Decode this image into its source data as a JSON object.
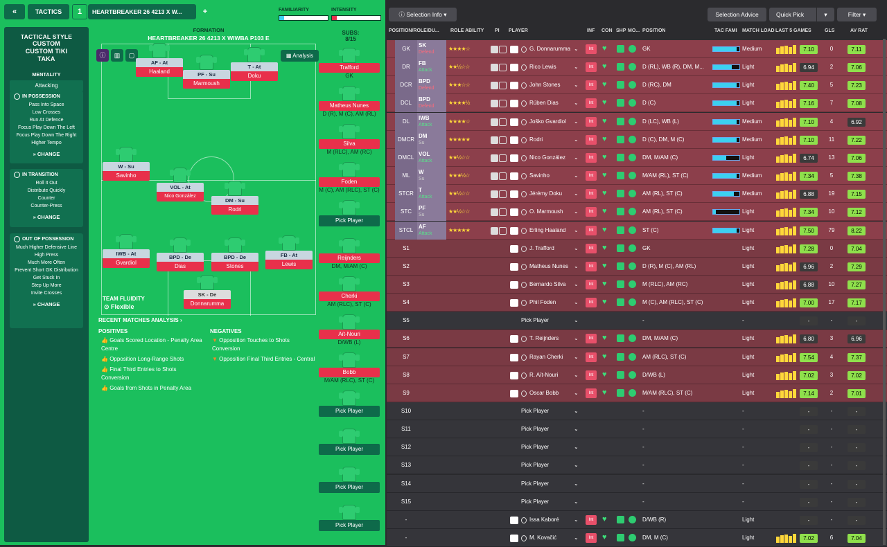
{
  "topbar": {
    "tactics_label": "TACTICS",
    "slot": "1",
    "tactic_name": "HEARTBREAKER 26 4213 X W...",
    "add": "+",
    "familiarity": "FAMILIARITY",
    "intensity": "INTENSITY"
  },
  "sidebar": {
    "style_label": "TACTICAL STYLE",
    "style_name": "CUSTOM CUSTOM TIKI TAKA",
    "mentality_label": "MENTALITY",
    "mentality": "Attacking",
    "in_possession": {
      "title": "IN POSSESSION",
      "items": [
        "Pass Into Space",
        "Low Crosses",
        "Run At Defence",
        "Focus Play Down The Left",
        "Focus Play Down The Right",
        "Higher Tempo"
      ],
      "change": "CHANGE"
    },
    "in_transition": {
      "title": "IN TRANSITION",
      "items": [
        "Roll It Out",
        "Distribute Quickly",
        "Counter",
        "Counter-Press"
      ],
      "change": "CHANGE"
    },
    "out_of_possession": {
      "title": "OUT OF POSSESSION",
      "items": [
        "Much Higher Defensive Line",
        "High Press",
        "Much More Often",
        "Prevent Short GK Distribution",
        "Get Stuck In",
        "Step Up More",
        "Invite Crosses"
      ],
      "change": "CHANGE"
    }
  },
  "formation": {
    "label": "FORMATION",
    "name": "HEARTBREAKER 26 4213 X WIWBA P103 E",
    "analysis": "Analysis",
    "team_fluidity": "TEAM FLUIDITY",
    "fluidity": "Flexible"
  },
  "pitch_players": [
    {
      "role": "AF - At",
      "name": "Haaland"
    },
    {
      "role": "PF - Su",
      "name": "Marmoush"
    },
    {
      "role": "T - At",
      "name": "Doku"
    },
    {
      "role": "W - Su",
      "name": "Savinho"
    },
    {
      "role": "VOL - At",
      "name": "Nico González"
    },
    {
      "role": "DM - Su",
      "name": "Rodri"
    },
    {
      "role": "IWB - At",
      "name": "Gvardiol"
    },
    {
      "role": "BPD - De",
      "name": "Dias"
    },
    {
      "role": "BPD - De",
      "name": "Stones"
    },
    {
      "role": "FB - At",
      "name": "Lewis"
    },
    {
      "role": "SK - De",
      "name": "Donnarumma"
    }
  ],
  "subs": {
    "label": "SUBS:",
    "count": "8/15",
    "list": [
      {
        "name": "Trafford",
        "pos": "GK"
      },
      {
        "name": "Matheus Nunes",
        "pos": "D (R), M (C), AM (RL)"
      },
      {
        "name": "Silva",
        "pos": "M (RLC), AM (RC)"
      },
      {
        "name": "Foden",
        "pos": "M (C), AM (RLC), ST (C)"
      },
      {
        "name": "Pick Player",
        "pos": ""
      },
      {
        "name": "Reijnders",
        "pos": "DM, M/AM (C)"
      },
      {
        "name": "Cherki",
        "pos": "AM (RLC), ST (C)"
      },
      {
        "name": "Aït-Nouri",
        "pos": "D/WB (L)"
      },
      {
        "name": "Bobb",
        "pos": "M/AM (RLC), ST (C)"
      },
      {
        "name": "Pick Player",
        "pos": ""
      },
      {
        "name": "Pick Player",
        "pos": ""
      },
      {
        "name": "Pick Player",
        "pos": ""
      },
      {
        "name": "Pick Player",
        "pos": ""
      }
    ]
  },
  "analysis": {
    "title": "RECENT MATCHES ANALYSIS",
    "positives_label": "POSITIVES",
    "negatives_label": "NEGATIVES",
    "positives": [
      "Goals Scored Location - Penalty Area Centre",
      "Opposition Long-Range Shots",
      "Final Third Entries to Shots Conversion",
      "Goals from Shots in Penalty Area"
    ],
    "negatives": [
      "Opposition Touches to Shots Conversion",
      "Opposition Final Third Entries - Central"
    ]
  },
  "right_header": {
    "selection_info": "Selection Info",
    "selection_advice": "Selection Advice",
    "quick_pick": "Quick Pick",
    "filter": "Filter"
  },
  "columns": [
    "POSITION/ROLE/DU...",
    "ROLE ABILITY",
    "PI",
    "PLAYER",
    "INF",
    "CON",
    "SHP",
    "MO...",
    "POSITION",
    "TAC FAMI",
    "MATCH LOAD",
    "LAST 5 GAMES",
    "GLS",
    "AV RAT"
  ],
  "rows": [
    {
      "pos": "GK",
      "role": "SK",
      "duty": "Defend",
      "stars": "★★★★☆",
      "player": "G. Donnarumma",
      "position": "GK",
      "tac": 0.9,
      "load": "Medium",
      "last": "7.10",
      "gls": "0",
      "rat": "7.11",
      "type": "st"
    },
    {
      "pos": "DR",
      "role": "FB",
      "duty": "Attack",
      "stars": "★★½☆☆",
      "player": "Rico Lewis",
      "position": "D (RL), WB (R), DM, M...",
      "tac": 0.7,
      "load": "Light",
      "last": "6.94",
      "gls": "2",
      "rat": "7.06",
      "type": "st"
    },
    {
      "pos": "DCR",
      "role": "BPD",
      "duty": "Defend",
      "stars": "★★★☆☆",
      "player": "John Stones",
      "position": "D (RC), DM",
      "tac": 0.9,
      "load": "Light",
      "last": "7.40",
      "gls": "5",
      "rat": "7.23",
      "type": "st"
    },
    {
      "pos": "DCL",
      "role": "BPD",
      "duty": "Defend",
      "stars": "★★★★½",
      "player": "Rúben Dias",
      "position": "D (C)",
      "tac": 0.9,
      "load": "Light",
      "last": "7.16",
      "gls": "7",
      "rat": "7.08",
      "type": "st"
    },
    {
      "pos": "DL",
      "role": "IWB",
      "duty": "Attack",
      "stars": "★★★★☆",
      "player": "Joško Gvardiol",
      "position": "D (LC), WB (L)",
      "tac": 0.9,
      "load": "Medium",
      "last": "7.10",
      "gls": "4",
      "rat": "6.92",
      "type": "st"
    },
    {
      "pos": "DMCR",
      "role": "DM",
      "duty": "Su",
      "stars": "★★★★★",
      "player": "Rodri",
      "position": "D (C), DM, M (C)",
      "tac": 0.9,
      "load": "Medium",
      "last": "7.10",
      "gls": "11",
      "rat": "7.22",
      "type": "st"
    },
    {
      "pos": "DMCL",
      "role": "VOL",
      "duty": "Attack",
      "stars": "★★½☆☆",
      "player": "Nico González",
      "position": "DM, M/AM (C)",
      "tac": 0.5,
      "load": "Light",
      "last": "6.74",
      "gls": "13",
      "rat": "7.06",
      "type": "st"
    },
    {
      "pos": "ML",
      "role": "W",
      "duty": "Su",
      "stars": "★★★½☆",
      "player": "Savinho",
      "position": "M/AM (RL), ST (C)",
      "tac": 0.9,
      "load": "Medium",
      "last": "7.34",
      "gls": "5",
      "rat": "7.38",
      "type": "st"
    },
    {
      "pos": "STCR",
      "role": "T",
      "duty": "Attack",
      "stars": "★★½☆☆",
      "player": "Jérémy Doku",
      "position": "AM (RL), ST (C)",
      "tac": 0.8,
      "load": "Medium",
      "last": "6.88",
      "gls": "19",
      "rat": "7.15",
      "type": "st"
    },
    {
      "pos": "STC",
      "role": "PF",
      "duty": "Su",
      "stars": "★★½☆☆",
      "player": "O. Marmoush",
      "position": "AM (RL), ST (C)",
      "tac": 0.1,
      "load": "Light",
      "last": "7.34",
      "gls": "10",
      "rat": "7.12",
      "type": "st"
    },
    {
      "pos": "STCL",
      "role": "AF",
      "duty": "Attack",
      "stars": "★★★★★",
      "player": "Erling Haaland",
      "position": "ST (C)",
      "tac": 0.9,
      "load": "Light",
      "last": "7.50",
      "gls": "79",
      "rat": "8.22",
      "type": "st"
    },
    {
      "pos": "S1",
      "player": "J. Trafford",
      "position": "GK",
      "load": "Light",
      "last": "7.28",
      "gls": "0",
      "rat": "7.04",
      "type": "sub-r"
    },
    {
      "pos": "S2",
      "player": "Matheus Nunes",
      "position": "D (R), M (C), AM (RL)",
      "load": "Light",
      "last": "6.96",
      "gls": "2",
      "rat": "7.29",
      "type": "sub-r"
    },
    {
      "pos": "S3",
      "player": "Bernardo Silva",
      "position": "M (RLC), AM (RC)",
      "load": "Light",
      "last": "6.88",
      "gls": "10",
      "rat": "7.27",
      "type": "sub-r"
    },
    {
      "pos": "S4",
      "player": "Phil Foden",
      "position": "M (C), AM (RLC), ST (C)",
      "load": "Light",
      "last": "7.00",
      "gls": "17",
      "rat": "7.17",
      "type": "sub-r"
    },
    {
      "pos": "S5",
      "player": "Pick Player",
      "position": "-",
      "load": "-",
      "last": "-",
      "gls": "-",
      "rat": "-",
      "type": "em"
    },
    {
      "pos": "S6",
      "player": "T. Reijnders",
      "position": "DM, M/AM (C)",
      "load": "Light",
      "last": "6.80",
      "gls": "3",
      "rat": "6.96",
      "type": "sub-r"
    },
    {
      "pos": "S7",
      "player": "Rayan Cherki",
      "position": "AM (RLC), ST (C)",
      "load": "Light",
      "last": "7.54",
      "gls": "4",
      "rat": "7.37",
      "type": "sub-r"
    },
    {
      "pos": "S8",
      "player": "R. Aït-Nouri",
      "position": "D/WB (L)",
      "load": "Light",
      "last": "7.02",
      "gls": "3",
      "rat": "7.02",
      "type": "sub-r"
    },
    {
      "pos": "S9",
      "player": "Oscar Bobb",
      "position": "M/AM (RLC), ST (C)",
      "load": "Light",
      "last": "7.14",
      "gls": "2",
      "rat": "7.01",
      "type": "sub-r"
    },
    {
      "pos": "S10",
      "player": "Pick Player",
      "position": "-",
      "load": "-",
      "last": "-",
      "gls": "-",
      "rat": "-",
      "type": "em"
    },
    {
      "pos": "S11",
      "player": "Pick Player",
      "position": "-",
      "load": "-",
      "last": "-",
      "gls": "-",
      "rat": "-",
      "type": "em"
    },
    {
      "pos": "S12",
      "player": "Pick Player",
      "position": "-",
      "load": "-",
      "last": "-",
      "gls": "-",
      "rat": "-",
      "type": "em"
    },
    {
      "pos": "S13",
      "player": "Pick Player",
      "position": "-",
      "load": "-",
      "last": "-",
      "gls": "-",
      "rat": "-",
      "type": "em"
    },
    {
      "pos": "S14",
      "player": "Pick Player",
      "position": "-",
      "load": "-",
      "last": "-",
      "gls": "-",
      "rat": "-",
      "type": "em"
    },
    {
      "pos": "S15",
      "player": "Pick Player",
      "position": "-",
      "load": "-",
      "last": "-",
      "gls": "-",
      "rat": "-",
      "type": "em"
    },
    {
      "pos": "-",
      "player": "Issa Kaboré",
      "position": "D/WB (R)",
      "load": "Light",
      "last": "-",
      "gls": "-",
      "rat": "-",
      "type": "em"
    },
    {
      "pos": "-",
      "player": "M. Kovačić",
      "position": "DM, M (C)",
      "load": "Light",
      "last": "7.02",
      "gls": "6",
      "rat": "7.04",
      "type": "em"
    }
  ]
}
